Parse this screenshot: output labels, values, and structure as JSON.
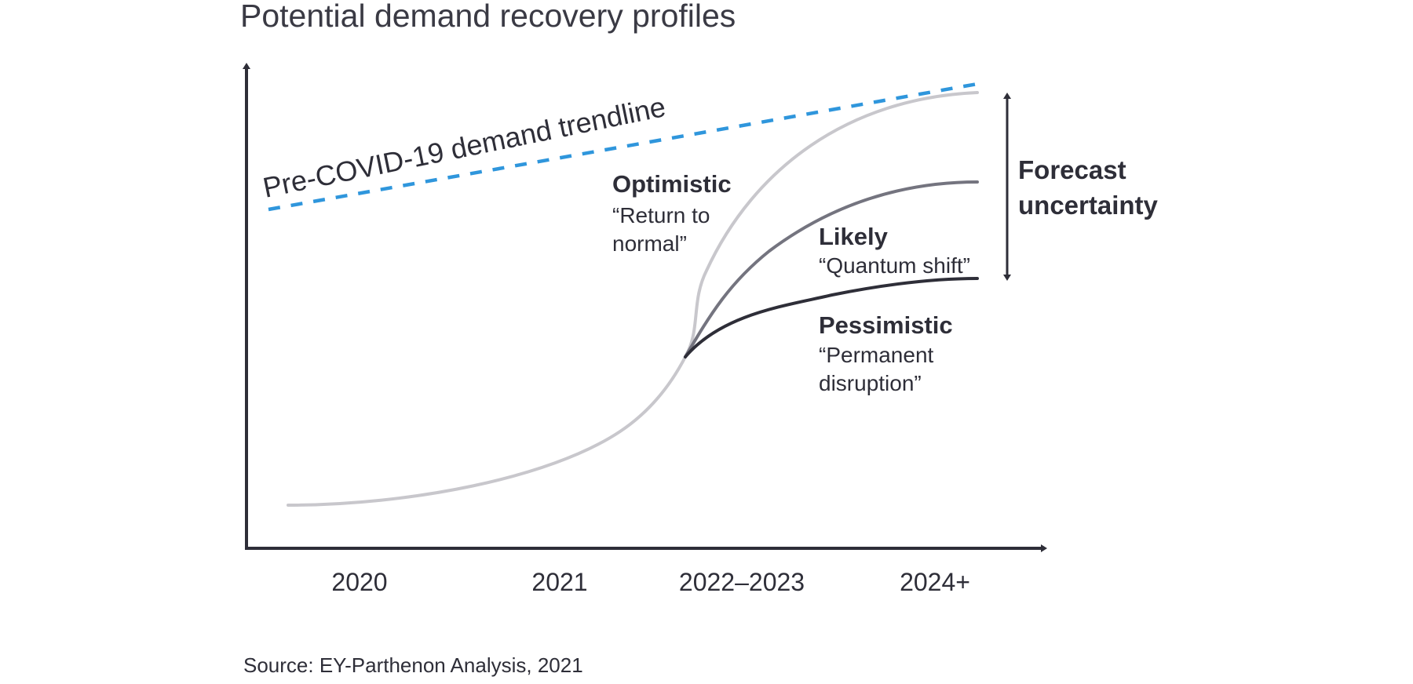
{
  "chart_data": {
    "type": "line",
    "title": "Potential demand recovery profiles",
    "xlabel": "",
    "ylabel": "",
    "categories": [
      "2020",
      "2021",
      "2022–2023",
      "2024+"
    ],
    "x_range": [
      0,
      4
    ],
    "y_range": [
      0,
      100
    ],
    "grid": false,
    "legend": "none (inline labels)",
    "source": "Source: EY-Parthenon Analysis, 2021",
    "trendline": {
      "name": "Pre-COVID-19 demand trendline",
      "style": "dashed",
      "color": "#2f96dc",
      "points": [
        [
          0.13,
          69
        ],
        [
          3.59,
          98
        ]
      ]
    },
    "common_path": {
      "name": "Pre-branch demand",
      "color": "#c8c7cc",
      "points": [
        [
          0.2,
          10
        ],
        [
          0.8,
          12
        ],
        [
          1.4,
          18
        ],
        [
          1.9,
          28
        ],
        [
          2.3,
          42
        ],
        [
          2.45,
          47
        ]
      ]
    },
    "series": [
      {
        "name": "Optimistic",
        "label": "Optimistic",
        "sublabel_lines": [
          "“Return to",
          "normal”"
        ],
        "color": "#c8c7cc",
        "points": [
          [
            2.45,
            47
          ],
          [
            2.5,
            56
          ],
          [
            2.6,
            67
          ],
          [
            2.8,
            80
          ],
          [
            3.1,
            90
          ],
          [
            3.4,
            95
          ],
          [
            3.59,
            96
          ]
        ]
      },
      {
        "name": "Likely",
        "label": "Likely",
        "sublabel_lines": [
          "“Quantum shift”"
        ],
        "color": "#74747f",
        "points": [
          [
            2.45,
            47
          ],
          [
            2.55,
            55
          ],
          [
            2.75,
            65
          ],
          [
            3.0,
            71
          ],
          [
            3.3,
            75
          ],
          [
            3.59,
            77
          ]
        ]
      },
      {
        "name": "Pessimistic",
        "label": "Pessimistic",
        "sublabel_lines": [
          "“Permanent",
          "disruption”"
        ],
        "color": "#2e2e38",
        "points": [
          [
            2.45,
            47
          ],
          [
            2.65,
            53
          ],
          [
            2.95,
            57
          ],
          [
            3.3,
            59.5
          ],
          [
            3.59,
            61
          ]
        ]
      }
    ],
    "annotation": {
      "text_lines": [
        "Forecast",
        "uncertainty"
      ],
      "type": "double-arrow",
      "spans": "between Optimistic and Pessimistic end values"
    }
  }
}
